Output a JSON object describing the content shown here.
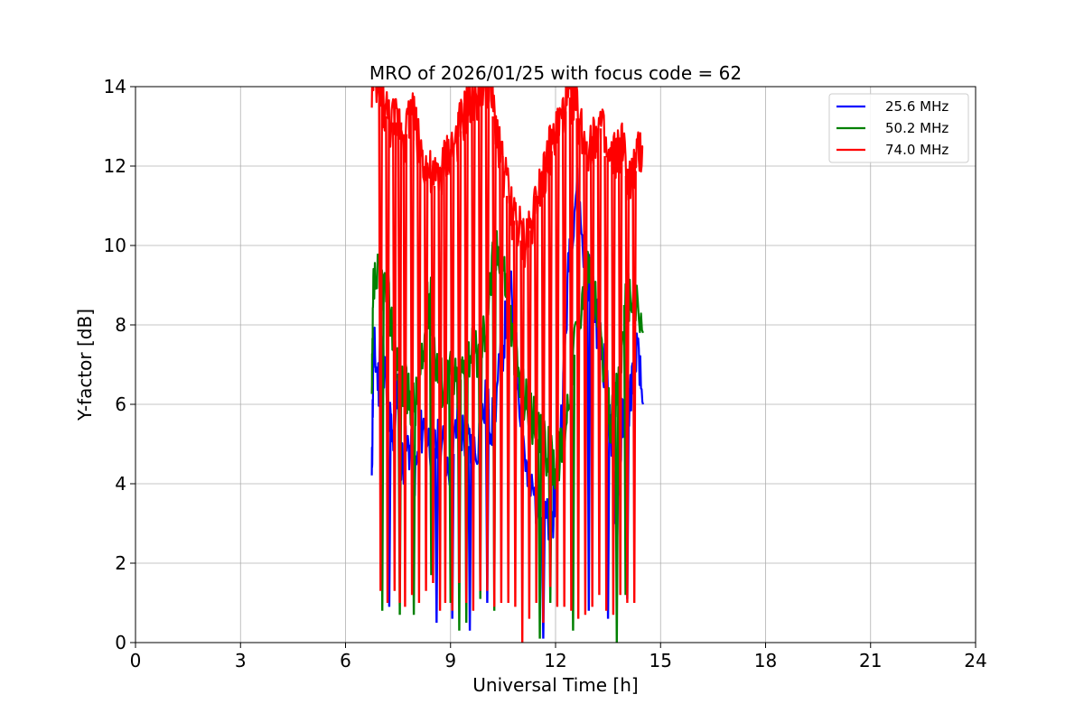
{
  "chart_data": {
    "type": "line",
    "title": "MRO of 2026/01/25 with focus code = 62",
    "xlabel": "Universal Time [h]",
    "ylabel": "Y-factor [dB]",
    "xlim": [
      0,
      24
    ],
    "ylim": [
      0,
      14
    ],
    "xticks": [
      0,
      3,
      6,
      9,
      12,
      15,
      18,
      21,
      24
    ],
    "yticks": [
      0,
      2,
      4,
      6,
      8,
      10,
      12,
      14
    ],
    "grid": true,
    "legend_position": "top-right",
    "series": [
      {
        "name": "25.6 MHz",
        "color": "#0000ff",
        "x": [
          6.75,
          6.8,
          6.95,
          7.0,
          7.2,
          7.35,
          7.5,
          7.6,
          7.8,
          8.0,
          8.2,
          8.5,
          8.7,
          9.0,
          9.2,
          9.5,
          9.7,
          10.0,
          10.2,
          10.5,
          10.7,
          11.0,
          11.2,
          11.5,
          11.7,
          11.9,
          12.0,
          12.2,
          12.4,
          12.6,
          12.8,
          13.0,
          13.2,
          13.4,
          13.6,
          13.75,
          13.9,
          14.1,
          14.3,
          14.5
        ],
        "y": [
          4.0,
          7.5,
          6.5,
          8.0,
          6.0,
          5.0,
          6.5,
          4.5,
          5.0,
          4.2,
          5.5,
          4.8,
          5.0,
          4.5,
          5.5,
          5.0,
          4.8,
          6.0,
          5.5,
          7.5,
          9.0,
          6.0,
          4.0,
          3.5,
          3.0,
          3.0,
          4.0,
          6.0,
          10.0,
          11.5,
          10.0,
          9.0,
          8.0,
          7.0,
          5.0,
          3.0,
          5.5,
          6.0,
          7.5,
          6.0
        ]
      },
      {
        "name": "50.2 MHz",
        "color": "#008000",
        "x": [
          6.75,
          6.8,
          7.0,
          7.2,
          7.4,
          7.6,
          7.8,
          8.0,
          8.2,
          8.4,
          8.6,
          8.8,
          9.0,
          9.2,
          9.4,
          9.6,
          9.8,
          10.0,
          10.2,
          10.4,
          10.6,
          10.8,
          11.0,
          11.2,
          11.4,
          11.6,
          11.8,
          12.0,
          12.2,
          12.4,
          12.6,
          12.8,
          13.0,
          13.2,
          13.4,
          13.6,
          13.8,
          14.0,
          14.2,
          14.5
        ],
        "y": [
          6.0,
          9.0,
          9.2,
          8.8,
          7.5,
          6.5,
          6.2,
          6.0,
          7.0,
          9.0,
          7.0,
          6.5,
          6.8,
          6.5,
          7.0,
          7.5,
          7.2,
          8.0,
          9.5,
          10.0,
          9.0,
          7.5,
          6.5,
          6.0,
          5.5,
          5.0,
          4.8,
          4.5,
          5.0,
          6.5,
          8.0,
          9.0,
          9.5,
          8.0,
          6.5,
          5.5,
          6.5,
          8.5,
          8.8,
          7.8
        ]
      },
      {
        "name": "74.0 MHz",
        "color": "#ff0000",
        "x": [
          6.75,
          6.9,
          7.1,
          7.3,
          7.5,
          7.7,
          7.9,
          8.1,
          8.3,
          8.5,
          8.7,
          8.9,
          9.1,
          9.3,
          9.5,
          9.7,
          9.9,
          10.1,
          10.3,
          10.5,
          10.7,
          10.9,
          11.1,
          11.3,
          11.5,
          11.7,
          11.9,
          12.1,
          12.3,
          12.5,
          12.7,
          12.9,
          13.1,
          13.3,
          13.5,
          13.7,
          13.9,
          14.1,
          14.3,
          14.5
        ],
        "y": [
          14.0,
          14.0,
          13.5,
          13.0,
          13.2,
          12.8,
          13.5,
          12.5,
          12.0,
          11.5,
          11.8,
          12.2,
          12.5,
          13.0,
          13.5,
          13.8,
          14.0,
          14.0,
          13.0,
          12.0,
          11.0,
          10.5,
          10.0,
          10.5,
          11.5,
          12.0,
          12.5,
          13.0,
          13.5,
          13.8,
          13.0,
          12.5,
          12.8,
          13.0,
          12.0,
          12.2,
          12.5,
          11.5,
          12.0,
          12.5
        ]
      }
    ],
    "spikes": {
      "red_dips": [
        [
          7.0,
          1.3
        ],
        [
          7.2,
          1.0
        ],
        [
          7.4,
          1.3
        ],
        [
          7.55,
          1.0
        ],
        [
          7.7,
          0.9
        ],
        [
          7.9,
          1.2
        ],
        [
          8.1,
          1.0
        ],
        [
          8.3,
          1.3
        ],
        [
          8.5,
          1.5
        ],
        [
          8.7,
          0.8
        ],
        [
          8.85,
          1.0
        ],
        [
          9.05,
          0.8
        ],
        [
          9.25,
          1.5
        ],
        [
          9.45,
          1.0
        ],
        [
          9.65,
          0.8
        ],
        [
          9.85,
          1.3
        ],
        [
          10.05,
          1.3
        ],
        [
          10.25,
          0.9
        ],
        [
          10.45,
          1.0
        ],
        [
          10.65,
          1.0
        ],
        [
          10.85,
          0.9
        ],
        [
          11.05,
          0.0
        ],
        [
          11.25,
          0.6
        ],
        [
          11.45,
          1.0
        ],
        [
          11.65,
          0.5
        ],
        [
          11.85,
          1.4
        ],
        [
          12.05,
          0.9
        ],
        [
          12.25,
          0.9
        ],
        [
          12.45,
          0.8
        ],
        [
          12.65,
          0.6
        ],
        [
          12.85,
          0.7
        ],
        [
          13.05,
          0.9
        ],
        [
          13.25,
          1.2
        ],
        [
          13.45,
          0.8
        ],
        [
          13.65,
          0.7
        ],
        [
          13.85,
          1.2
        ],
        [
          14.05,
          1.0
        ],
        [
          14.25,
          1.0
        ]
      ],
      "green_dips": [
        [
          7.05,
          0.8
        ],
        [
          7.55,
          0.7
        ],
        [
          7.95,
          0.7
        ],
        [
          8.45,
          1.7
        ],
        [
          9.0,
          1.0
        ],
        [
          9.25,
          0.3
        ],
        [
          9.45,
          0.5
        ],
        [
          9.85,
          1.1
        ],
        [
          10.25,
          0.8
        ],
        [
          11.55,
          0.1
        ],
        [
          11.85,
          1.0
        ],
        [
          12.5,
          0.3
        ],
        [
          13.75,
          0.0
        ],
        [
          14.0,
          1.2
        ]
      ],
      "blue_dips": [
        [
          7.25,
          0.9
        ],
        [
          8.6,
          0.5
        ],
        [
          9.05,
          0.6
        ],
        [
          9.55,
          0.3
        ],
        [
          10.05,
          1.0
        ],
        [
          11.65,
          0.1
        ],
        [
          12.95,
          0.8
        ],
        [
          13.5,
          0.6
        ],
        [
          14.05,
          1.1
        ]
      ]
    }
  }
}
